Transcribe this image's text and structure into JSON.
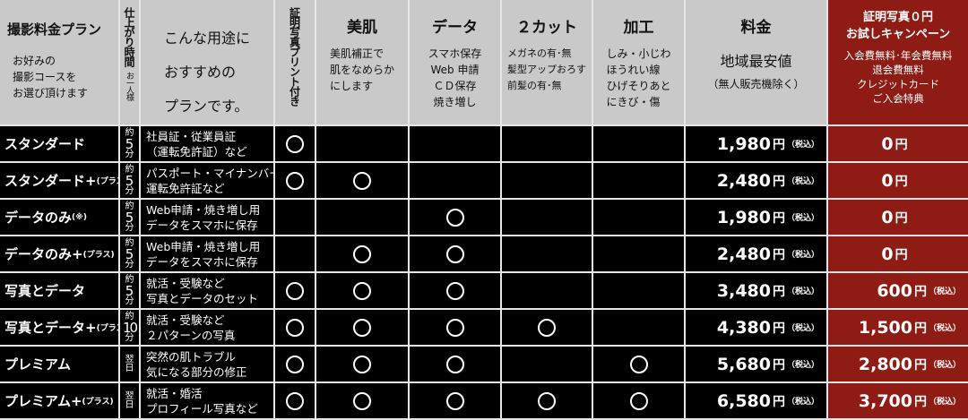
{
  "header": {
    "plan": {
      "title": "撮影料金プラン",
      "sub": [
        "お好みの",
        "撮影コースを",
        "お選び頂けます"
      ]
    },
    "time": {
      "title": "仕上がり時間",
      "sub": "お一人様"
    },
    "use": {
      "lines": [
        "こんな用途に",
        "おすすめの",
        "プランです。"
      ]
    },
    "print": {
      "title": "証明写真プリント付き"
    },
    "bihada": {
      "title": "美肌",
      "sub": [
        "美肌補正で",
        "肌をなめらか",
        "にします"
      ]
    },
    "data": {
      "title": "データ",
      "sub": [
        "スマホ保存",
        "Web 申請",
        "ＣＤ保存",
        "焼き増し"
      ]
    },
    "twocut": {
      "title": "２カット",
      "sub": [
        "メガネの有･無",
        "髪型アップおろす",
        "前髪の有･無"
      ]
    },
    "kakou": {
      "title": "加工",
      "sub": [
        "しみ・小じわ",
        "ほうれい線",
        "ひげそりあと",
        "にきび・傷"
      ]
    },
    "price": {
      "title": "料金",
      "sub": "地域最安値",
      "note": "（無人販売機除く）"
    },
    "campaign": {
      "title": [
        "証明写真０円",
        "お試しキャンペーン"
      ],
      "sub": [
        "入会費無料･年会費無料",
        "退会費無料",
        "クレジットカード",
        "ご入会特典"
      ]
    }
  },
  "yen": "円",
  "tax": "（税込）",
  "mark": "○",
  "colors": {
    "header_bg": "#c9c9c9",
    "row_bg": "#000000",
    "campaign": "#8e1b14"
  },
  "rows": [
    {
      "plan": "スタンダード",
      "suffix": "",
      "time_pre": "約",
      "time": "5",
      "time_post": "分",
      "use": "社員証・従業員証\n（運転免許証）など",
      "marks": [
        1,
        0,
        0,
        0,
        0
      ],
      "price": "1,980",
      "campaign": "0"
    },
    {
      "plan": "スタンダード+",
      "suffix": "(プラス)",
      "time_pre": "約",
      "time": "5",
      "time_post": "分",
      "use": "パスポート・マイナンバー\n運転免許証など",
      "marks": [
        1,
        1,
        0,
        0,
        0
      ],
      "price": "2,480",
      "campaign": "0"
    },
    {
      "plan": "データのみ",
      "suffix": "(※)",
      "time_pre": "約",
      "time": "5",
      "time_post": "分",
      "use": "Web申請・焼き増し用\nデータをスマホに保存",
      "marks": [
        0,
        0,
        1,
        0,
        0
      ],
      "price": "1,980",
      "campaign": "0"
    },
    {
      "plan": "データのみ+",
      "suffix": "(プラス)",
      "time_pre": "約",
      "time": "5",
      "time_post": "分",
      "use": "Web申請・焼き増し用\nデータをスマホに保存",
      "marks": [
        0,
        1,
        1,
        0,
        0
      ],
      "price": "2,480",
      "campaign": "0"
    },
    {
      "plan": "写真とデータ",
      "suffix": "",
      "time_pre": "約",
      "time": "5",
      "time_post": "分",
      "use": "就活・受験など\n写真とデータのセット",
      "marks": [
        1,
        1,
        1,
        0,
        0
      ],
      "price": "3,480",
      "campaign": "600"
    },
    {
      "plan": "写真とデータ+",
      "suffix": "(プラス)",
      "time_pre": "約",
      "time": "10",
      "time_post": "分",
      "use": "就活・受験など\n２パターンの写真",
      "marks": [
        1,
        1,
        1,
        1,
        0
      ],
      "price": "4,380",
      "campaign": "1,500"
    },
    {
      "plan": "プレミアム",
      "suffix": "",
      "time_pre": "翌",
      "time": "",
      "time_post": "日",
      "use": "突然の肌トラブル\n気になる部分の修正",
      "marks": [
        1,
        1,
        1,
        0,
        1
      ],
      "price": "5,680",
      "campaign": "2,800"
    },
    {
      "plan": "プレミアム+",
      "suffix": "(プラス)",
      "time_pre": "翌",
      "time": "",
      "time_post": "日",
      "use": "就活・婚活\nプロフィール写真など",
      "marks": [
        1,
        1,
        1,
        1,
        1
      ],
      "price": "6,580",
      "campaign": "3,700"
    }
  ]
}
